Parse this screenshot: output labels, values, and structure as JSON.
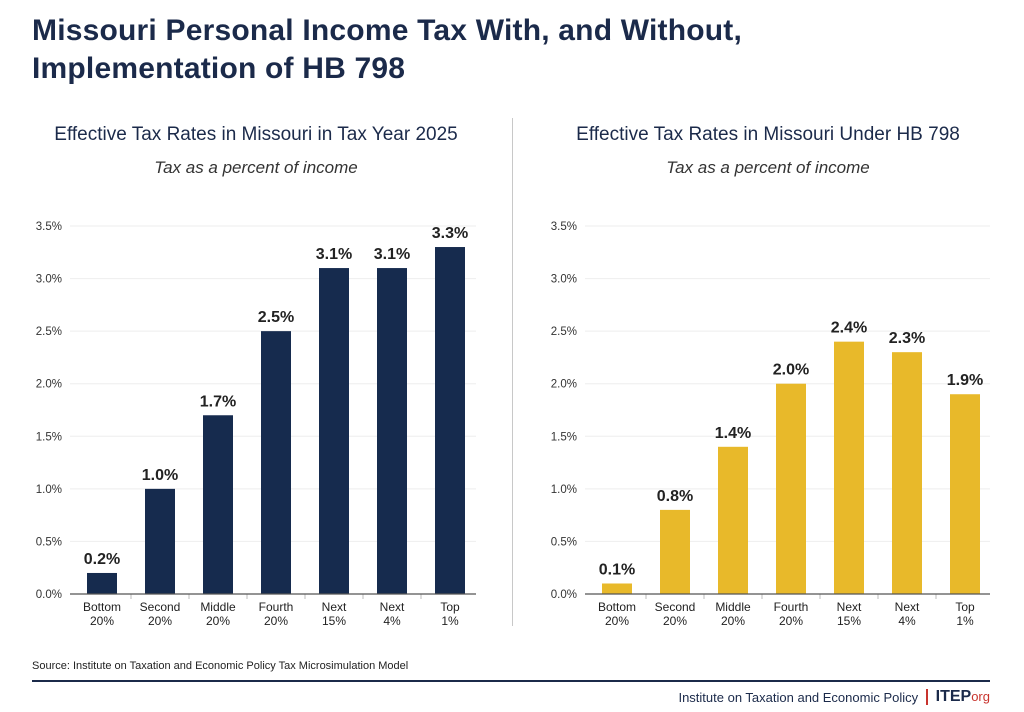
{
  "title_line1": "Missouri Personal Income Tax With, and Without,",
  "title_line2": "Implementation of HB 798",
  "source": "Source: Institute on Taxation and Economic Policy Tax Microsimulation Model",
  "footer": {
    "org_name": "Institute on Taxation and Economic Policy",
    "logo_main": "ITEP",
    "logo_suffix": "org"
  },
  "colors": {
    "navy": "#162b4e",
    "gold": "#e8b92a",
    "logo_red": "#c8342e"
  },
  "chart_data": [
    {
      "type": "bar",
      "title": "Effective Tax Rates in Missouri in Tax Year 2025",
      "subtitle": "Tax as a percent of income",
      "categories": [
        [
          "Bottom",
          "20%"
        ],
        [
          "Second",
          "20%"
        ],
        [
          "Middle",
          "20%"
        ],
        [
          "Fourth",
          "20%"
        ],
        [
          "Next",
          "15%"
        ],
        [
          "Next",
          "4%"
        ],
        [
          "Top",
          "1%"
        ]
      ],
      "values": [
        0.2,
        1.0,
        1.7,
        2.5,
        3.1,
        3.1,
        3.3
      ],
      "data_labels": [
        "0.2%",
        "1.0%",
        "1.7%",
        "2.5%",
        "3.1%",
        "3.1%",
        "3.3%"
      ],
      "ylim": [
        0,
        3.5
      ],
      "yticks": [
        "0.0%",
        "0.5%",
        "1.0%",
        "1.5%",
        "2.0%",
        "2.5%",
        "3.0%",
        "3.5%"
      ],
      "grid": true,
      "color": "#162b4e"
    },
    {
      "type": "bar",
      "title": "Effective Tax Rates in Missouri Under HB 798",
      "subtitle": "Tax as a percent of income",
      "categories": [
        [
          "Bottom",
          "20%"
        ],
        [
          "Second",
          "20%"
        ],
        [
          "Middle",
          "20%"
        ],
        [
          "Fourth",
          "20%"
        ],
        [
          "Next",
          "15%"
        ],
        [
          "Next",
          "4%"
        ],
        [
          "Top",
          "1%"
        ]
      ],
      "values": [
        0.1,
        0.8,
        1.4,
        2.0,
        2.4,
        2.3,
        1.9
      ],
      "data_labels": [
        "0.1%",
        "0.8%",
        "1.4%",
        "2.0%",
        "2.4%",
        "2.3%",
        "1.9%"
      ],
      "ylim": [
        0,
        3.5
      ],
      "yticks": [
        "0.0%",
        "0.5%",
        "1.0%",
        "1.5%",
        "2.0%",
        "2.5%",
        "3.0%",
        "3.5%"
      ],
      "grid": true,
      "color": "#e8b92a"
    }
  ]
}
